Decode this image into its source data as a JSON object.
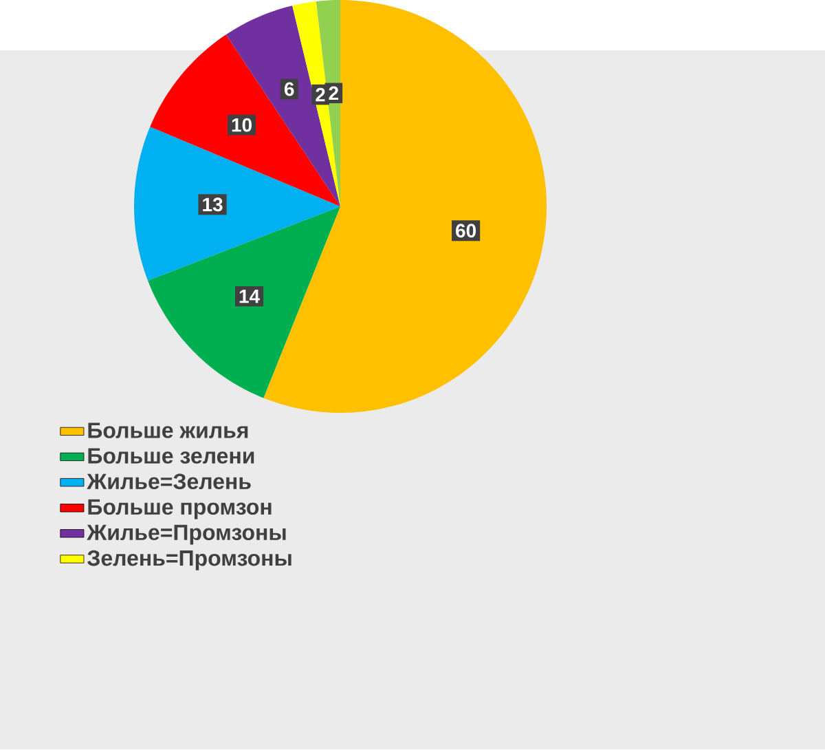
{
  "chart_data": {
    "type": "pie",
    "categories": [
      "Больше жилья",
      "Больше зелени",
      "Жилье=Зелень",
      "Больше промзон",
      "Жилье=Промзоны",
      "Зелень=Промзоны",
      null
    ],
    "values": [
      60,
      14,
      13,
      10,
      6,
      2,
      2
    ],
    "colors": [
      "#ffc000",
      "#00b050",
      "#00b0f0",
      "#ff0000",
      "#7030a0",
      "#ffff00",
      "#92d050"
    ],
    "data_labels": true,
    "legend": "bottom left"
  }
}
